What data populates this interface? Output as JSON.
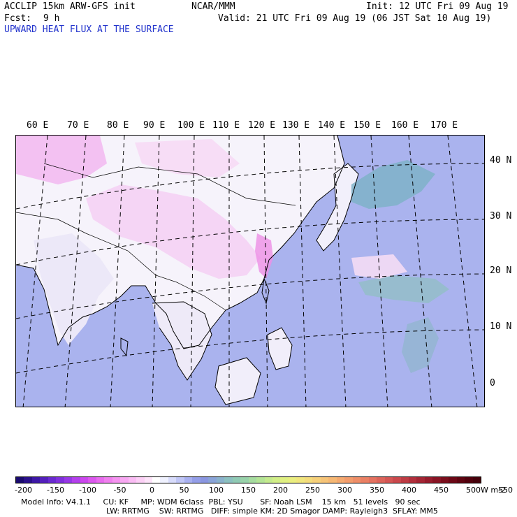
{
  "header": {
    "model": "ACCLIP 15km ARW-GFS init",
    "org": "NCAR/MMM",
    "init": "Init: 12 UTC Fri 09 Aug 19",
    "fcst_label": "Fcst:",
    "fcst_value": "9 h",
    "valid": "Valid: 21 UTC Fri 09 Aug 19 (06 JST Sat 10 Aug 19)",
    "field_title": "UPWARD HEAT FLUX AT THE SURFACE"
  },
  "map": {
    "lon_labels": [
      "60 E",
      "70 E",
      "80 E",
      "90 E",
      "100 E",
      "110 E",
      "120 E",
      "130 E",
      "140 E",
      "150 E",
      "160 E",
      "170 E"
    ],
    "lat_labels": [
      "40 N",
      "30 N",
      "20 N",
      "10 N",
      "0"
    ]
  },
  "colorbar": {
    "unit": "W m-2",
    "tick_labels": [
      "-200",
      "-150",
      "-100",
      "-50",
      "0",
      "50",
      "100",
      "150",
      "200",
      "250",
      "300",
      "350",
      "400",
      "450",
      "500",
      "550"
    ],
    "colors": [
      "#1a0a6e",
      "#2a108a",
      "#3d18a6",
      "#5420bc",
      "#6a2ad0",
      "#8030dc",
      "#9838e6",
      "#b440ec",
      "#cc48ee",
      "#dc58ee",
      "#e86cee",
      "#f080ee",
      "#f594f0",
      "#f8a8f2",
      "#fabcf4",
      "#fcd0f6",
      "#fde4f9",
      "#ffffff",
      "#f0f2ff",
      "#d8dcfb",
      "#c0c6f6",
      "#a8b0f0",
      "#949ee8",
      "#8a96e0",
      "#8aa4d8",
      "#8ab2cc",
      "#8cc0c0",
      "#90cab4",
      "#98d2aa",
      "#a6dca0",
      "#b4e496",
      "#c4ea8e",
      "#d2ee88",
      "#e0f082",
      "#eaee80",
      "#f0e67e",
      "#f4dc7c",
      "#f6d07a",
      "#f6c478",
      "#f6b874",
      "#f4aa70",
      "#f29c6c",
      "#ee8e68",
      "#ea8064",
      "#e47260",
      "#dc645a",
      "#d45654",
      "#ca484c",
      "#be3c44",
      "#b2303c",
      "#a42634",
      "#961c2c",
      "#881424",
      "#7a0e1c",
      "#6c0816",
      "#5e0410",
      "#50000c",
      "#44000a"
    ]
  },
  "footer": {
    "line1": "Model Info: V4.1.1     CU: KF     MP: WDM 6class  PBL: YSU       SF: Noah LSM    15 km   51 levels   90 sec",
    "line2": "LW: RRTMG    SW: RRTMG   DIFF: simple KM: 2D Smagor DAMP: Rayleigh3  SFLAY: MM5"
  }
}
